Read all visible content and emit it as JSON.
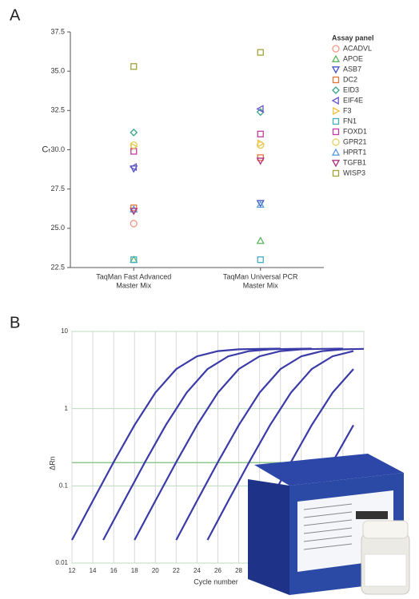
{
  "chart_data": [
    {
      "type": "scatter",
      "panel": "A",
      "ylabel": "Cₜ",
      "categories": [
        [
          "TaqMan Fast Advanced",
          "Master Mix"
        ],
        [
          "TaqMan Universal PCR",
          "Master Mix"
        ]
      ],
      "ylim": [
        22.5,
        37.5
      ],
      "yticks": [
        22.5,
        {
          "value": 25,
          "label": "25.0"
        },
        27.5,
        {
          "value": 30,
          "label": "30.0"
        },
        32.5,
        {
          "value": 35,
          "label": "35.0"
        },
        37.5
      ],
      "legend_title": "Assay panel",
      "legend": "right",
      "series": [
        {
          "name": "ACADVL",
          "color": "#f29a86",
          "marker": "circle",
          "values": [
            25.3,
            30.3
          ]
        },
        {
          "name": "APOE",
          "color": "#5fb35f",
          "marker": "triangle-up",
          "values": [
            23.0,
            24.2
          ]
        },
        {
          "name": "ASB7",
          "color": "#4254c0",
          "marker": "triangle-down",
          "values": [
            28.8,
            26.6
          ]
        },
        {
          "name": "DC2",
          "color": "#e0763a",
          "marker": "square",
          "values": [
            26.3,
            29.5
          ]
        },
        {
          "name": "EID3",
          "color": "#35a585",
          "marker": "diamond",
          "values": [
            31.1,
            32.4
          ]
        },
        {
          "name": "EIF4E",
          "color": "#6a55c8",
          "marker": "triangle-left",
          "values": [
            28.9,
            32.6
          ]
        },
        {
          "name": "F3",
          "color": "#f0c03c",
          "marker": "triangle-right",
          "values": [
            30.2,
            30.4
          ]
        },
        {
          "name": "FN1",
          "color": "#45adc0",
          "marker": "square",
          "values": [
            23.0,
            23.0
          ]
        },
        {
          "name": "FOXD1",
          "color": "#c23c9e",
          "marker": "square",
          "values": [
            29.9,
            31.0
          ]
        },
        {
          "name": "GPR21",
          "color": "#e6d05a",
          "marker": "circle",
          "values": [
            30.3,
            30.3
          ]
        },
        {
          "name": "HPRT1",
          "color": "#5b9de0",
          "marker": "triangle-up",
          "values": [
            26.2,
            26.5
          ]
        },
        {
          "name": "TGFB1",
          "color": "#b0307e",
          "marker": "triangle-down",
          "values": [
            26.1,
            29.3
          ]
        },
        {
          "name": "WISP3",
          "color": "#a3a23c",
          "marker": "square",
          "values": [
            35.3,
            36.2
          ]
        }
      ]
    },
    {
      "type": "line",
      "panel": "B",
      "xlabel": "Cycle number",
      "ylabel": "ΔRn",
      "log_y": true,
      "grid": true,
      "threshold": 0.2,
      "threshold_color": "#8fc88f",
      "xlim": [
        12,
        40
      ],
      "xticks": [
        12,
        14,
        16,
        18,
        20,
        22,
        24,
        26,
        28,
        30,
        32,
        34,
        36,
        38,
        40
      ],
      "ylim": [
        0.01,
        10
      ],
      "yticks": [
        0.01,
        0.1,
        1,
        10
      ],
      "series": [
        {
          "color": "#3a3aa8",
          "x": [
            12,
            14,
            16,
            18,
            20,
            22,
            24,
            26,
            28,
            30,
            32
          ],
          "values": [
            0.0199,
            0.064,
            0.203,
            0.611,
            1.61,
            3.26,
            4.77,
            5.56,
            5.86,
            5.95,
            5.99
          ]
        },
        {
          "color": "#3a3aa8",
          "x": [
            15,
            17,
            19,
            21,
            23,
            25,
            27,
            29,
            31,
            33,
            35
          ],
          "values": [
            0.0199,
            0.064,
            0.203,
            0.611,
            1.61,
            3.26,
            4.77,
            5.56,
            5.86,
            5.95,
            5.99
          ]
        },
        {
          "color": "#3a3aa8",
          "x": [
            18,
            20,
            22,
            24,
            26,
            28,
            30,
            32,
            34,
            36,
            38
          ],
          "values": [
            0.0199,
            0.064,
            0.203,
            0.611,
            1.61,
            3.26,
            4.77,
            5.56,
            5.86,
            5.95,
            5.99
          ]
        },
        {
          "color": "#3a3aa8",
          "x": [
            22,
            24,
            26,
            28,
            30,
            32,
            34,
            36,
            38,
            40
          ],
          "values": [
            0.0199,
            0.064,
            0.203,
            0.611,
            1.61,
            3.26,
            4.77,
            5.56,
            5.86,
            5.95
          ]
        },
        {
          "color": "#3a3aa8",
          "x": [
            25,
            27,
            29,
            31,
            33,
            35,
            37,
            39
          ],
          "values": [
            0.0199,
            0.064,
            0.203,
            0.611,
            1.61,
            3.26,
            4.77,
            5.56
          ]
        },
        {
          "color": "#3a3aa8",
          "x": [
            29,
            31,
            33,
            35,
            37,
            39
          ],
          "values": [
            0.0199,
            0.064,
            0.203,
            0.611,
            1.61,
            3.26
          ]
        },
        {
          "color": "#3a3aa8",
          "x": [
            33,
            35,
            37,
            39
          ],
          "values": [
            0.0199,
            0.064,
            0.203,
            0.611
          ]
        }
      ]
    }
  ]
}
